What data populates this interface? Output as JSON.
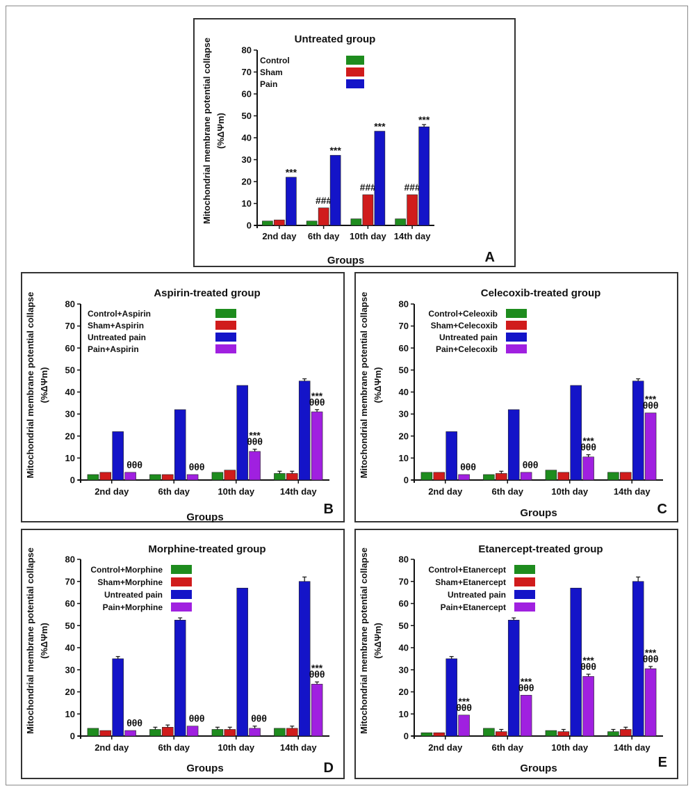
{
  "chart_data": [
    {
      "id": "A",
      "type": "bar",
      "title": "Untreated group",
      "ylabel_line1": "Mitochondrial membrane potential collapse",
      "ylabel_line2": "(%ΔΨm)",
      "xlabel": "Groups",
      "panel_letter": "A",
      "ylim": [
        0,
        80
      ],
      "yticks": [
        "0",
        "10",
        "20",
        "30",
        "40",
        "50",
        "60",
        "70",
        "80"
      ],
      "categories": [
        "2nd day",
        "6th day",
        "10th day",
        "14th day"
      ],
      "series": [
        {
          "name": "Control",
          "color": "#1e8c1e",
          "values": [
            2,
            2,
            3,
            3
          ],
          "errors": [
            0,
            0,
            0,
            0
          ],
          "annotations": [
            [],
            [],
            [],
            []
          ]
        },
        {
          "name": "Sham",
          "color": "#d01c1c",
          "values": [
            2.5,
            8,
            14,
            14
          ],
          "errors": [
            0,
            0,
            0,
            0
          ],
          "annotations": [
            [],
            [
              "###"
            ],
            [
              "###"
            ],
            [
              "###"
            ]
          ]
        },
        {
          "name": "Pain",
          "color": "#1414c8",
          "values": [
            22,
            32,
            43,
            45
          ],
          "errors": [
            0,
            0,
            0,
            1
          ],
          "annotations": [
            [
              "***"
            ],
            [
              "***"
            ],
            [
              "***"
            ],
            [
              "***"
            ]
          ]
        }
      ]
    },
    {
      "id": "B",
      "type": "bar",
      "title": "Aspirin-treated group",
      "ylabel_line1": "Mitochondrial membrane potential collapse",
      "ylabel_line2": "(%ΔΨm)",
      "xlabel": "Groups",
      "panel_letter": "B",
      "ylim": [
        0,
        80
      ],
      "yticks": [
        "0",
        "10",
        "20",
        "30",
        "40",
        "50",
        "60",
        "70",
        "80"
      ],
      "categories": [
        "2nd day",
        "6th day",
        "10th day",
        "14th day"
      ],
      "series": [
        {
          "name": "Control+Aspirin",
          "color": "#1e8c1e",
          "values": [
            2.5,
            2.5,
            3.5,
            3
          ],
          "errors": [
            0,
            0,
            0,
            1
          ],
          "annotations": [
            [],
            [],
            [],
            []
          ]
        },
        {
          "name": "Sham+Aspirin",
          "color": "#d01c1c",
          "values": [
            3.5,
            2.5,
            4.5,
            3
          ],
          "errors": [
            0,
            0,
            0,
            1
          ],
          "annotations": [
            [],
            [],
            [],
            []
          ]
        },
        {
          "name": "Untreated pain",
          "color": "#1414c8",
          "values": [
            22,
            32,
            43,
            45
          ],
          "errors": [
            0,
            0,
            0,
            1
          ],
          "annotations": [
            [],
            [],
            [],
            []
          ]
        },
        {
          "name": "Pain+Aspirin",
          "color": "#a020e0",
          "values": [
            3.5,
            2.5,
            13,
            31
          ],
          "errors": [
            0,
            0,
            1,
            1
          ],
          "annotations": [
            [
              "θθθ"
            ],
            [
              "θθθ"
            ],
            [
              "***",
              "θθθ"
            ],
            [
              "***",
              "θθθ"
            ]
          ]
        }
      ]
    },
    {
      "id": "C",
      "type": "bar",
      "title": "Celecoxib-treated group",
      "ylabel_line1": "Mitochondrial membrane potential collapse",
      "ylabel_line2": "(%ΔΨm)",
      "xlabel": "Groups",
      "panel_letter": "C",
      "ylim": [
        0,
        80
      ],
      "yticks": [
        "0",
        "10",
        "20",
        "30",
        "40",
        "50",
        "60",
        "70",
        "80"
      ],
      "categories": [
        "2nd day",
        "6th day",
        "10th day",
        "14th day"
      ],
      "series": [
        {
          "name": "Control+Celeoxib",
          "color": "#1e8c1e",
          "values": [
            3.5,
            2.5,
            4.5,
            3.5
          ],
          "errors": [
            0,
            0,
            0,
            0
          ],
          "annotations": [
            [],
            [],
            [],
            []
          ]
        },
        {
          "name": "Sham+Celecoxib",
          "color": "#d01c1c",
          "values": [
            3.5,
            3,
            3.5,
            3.5
          ],
          "errors": [
            0,
            1,
            0,
            0
          ],
          "annotations": [
            [],
            [],
            [],
            []
          ]
        },
        {
          "name": "Untreated pain",
          "color": "#1414c8",
          "values": [
            22,
            32,
            43,
            45
          ],
          "errors": [
            0,
            0,
            0,
            1
          ],
          "annotations": [
            [],
            [],
            [],
            []
          ]
        },
        {
          "name": "Pain+Celecoxib",
          "color": "#a020e0",
          "values": [
            2.5,
            3.5,
            10.5,
            30.5
          ],
          "errors": [
            0,
            0,
            1,
            0
          ],
          "annotations": [
            [
              "θθθ"
            ],
            [
              "θθθ"
            ],
            [
              "***",
              "θθθ"
            ],
            [
              "***",
              "θθθ"
            ]
          ]
        }
      ]
    },
    {
      "id": "D",
      "type": "bar",
      "title": "Morphine-treated group",
      "ylabel_line1": "Mitochondrial membrane potential collapse",
      "ylabel_line2": "(%ΔΨm)",
      "xlabel": "Groups",
      "panel_letter": "D",
      "ylim": [
        0,
        80
      ],
      "yticks": [
        "0",
        "10",
        "20",
        "30",
        "40",
        "50",
        "60",
        "70",
        "80"
      ],
      "categories": [
        "2nd day",
        "6th day",
        "10th day",
        "14th day"
      ],
      "series": [
        {
          "name": "Control+Morphine",
          "color": "#1e8c1e",
          "values": [
            3.5,
            3,
            3,
            3.5
          ],
          "errors": [
            0,
            1,
            1,
            0
          ],
          "annotations": [
            [],
            [],
            [],
            []
          ]
        },
        {
          "name": "Sham+Morphine",
          "color": "#d01c1c",
          "values": [
            2.5,
            4,
            3,
            3.5
          ],
          "errors": [
            0,
            1,
            1,
            1
          ],
          "annotations": [
            [],
            [],
            [],
            []
          ]
        },
        {
          "name": "Untreated pain",
          "color": "#1414c8",
          "values": [
            35,
            52.5,
            67,
            70
          ],
          "errors": [
            1,
            1,
            0,
            2
          ],
          "annotations": [
            [],
            [],
            [],
            []
          ]
        },
        {
          "name": "Pain+Morphine",
          "color": "#a020e0",
          "values": [
            2.5,
            4.5,
            3.5,
            23.5
          ],
          "errors": [
            0,
            0,
            1,
            1
          ],
          "annotations": [
            [
              "θθθ"
            ],
            [
              "θθθ"
            ],
            [
              "θθθ"
            ],
            [
              "***",
              "θθθ"
            ]
          ]
        }
      ]
    },
    {
      "id": "E",
      "type": "bar",
      "title": "Etanercept-treated group",
      "ylabel_line1": "Mitochondrial membrane potential collapse",
      "ylabel_line2": "(%ΔΨm)",
      "xlabel": "Groups",
      "panel_letter": "E",
      "ylim": [
        0,
        80
      ],
      "yticks": [
        "0",
        "10",
        "20",
        "30",
        "40",
        "50",
        "60",
        "70",
        "80"
      ],
      "categories": [
        "2nd day",
        "6th day",
        "10th day",
        "14th day"
      ],
      "series": [
        {
          "name": "Control+Etanercept",
          "color": "#1e8c1e",
          "values": [
            1.5,
            3.5,
            2.5,
            2
          ],
          "errors": [
            0,
            0,
            0,
            1
          ],
          "annotations": [
            [],
            [],
            [],
            []
          ]
        },
        {
          "name": "Sham+Etanercept",
          "color": "#d01c1c",
          "values": [
            1.5,
            2,
            2,
            3
          ],
          "errors": [
            0,
            1,
            1,
            1
          ],
          "annotations": [
            [],
            [],
            [],
            []
          ]
        },
        {
          "name": "Untreated pain",
          "color": "#1414c8",
          "values": [
            35,
            52.5,
            67,
            70
          ],
          "errors": [
            1,
            1,
            0,
            2
          ],
          "annotations": [
            [],
            [],
            [],
            []
          ]
        },
        {
          "name": "Pain+Etanercept",
          "color": "#a020e0",
          "values": [
            9.5,
            18.5,
            27,
            30.5
          ],
          "errors": [
            0,
            0,
            1,
            1
          ],
          "annotations": [
            [
              "***",
              "θθθ"
            ],
            [
              "***",
              "θθθ"
            ],
            [
              "***",
              "θθθ"
            ],
            [
              "***",
              "θθθ"
            ]
          ]
        }
      ]
    }
  ]
}
